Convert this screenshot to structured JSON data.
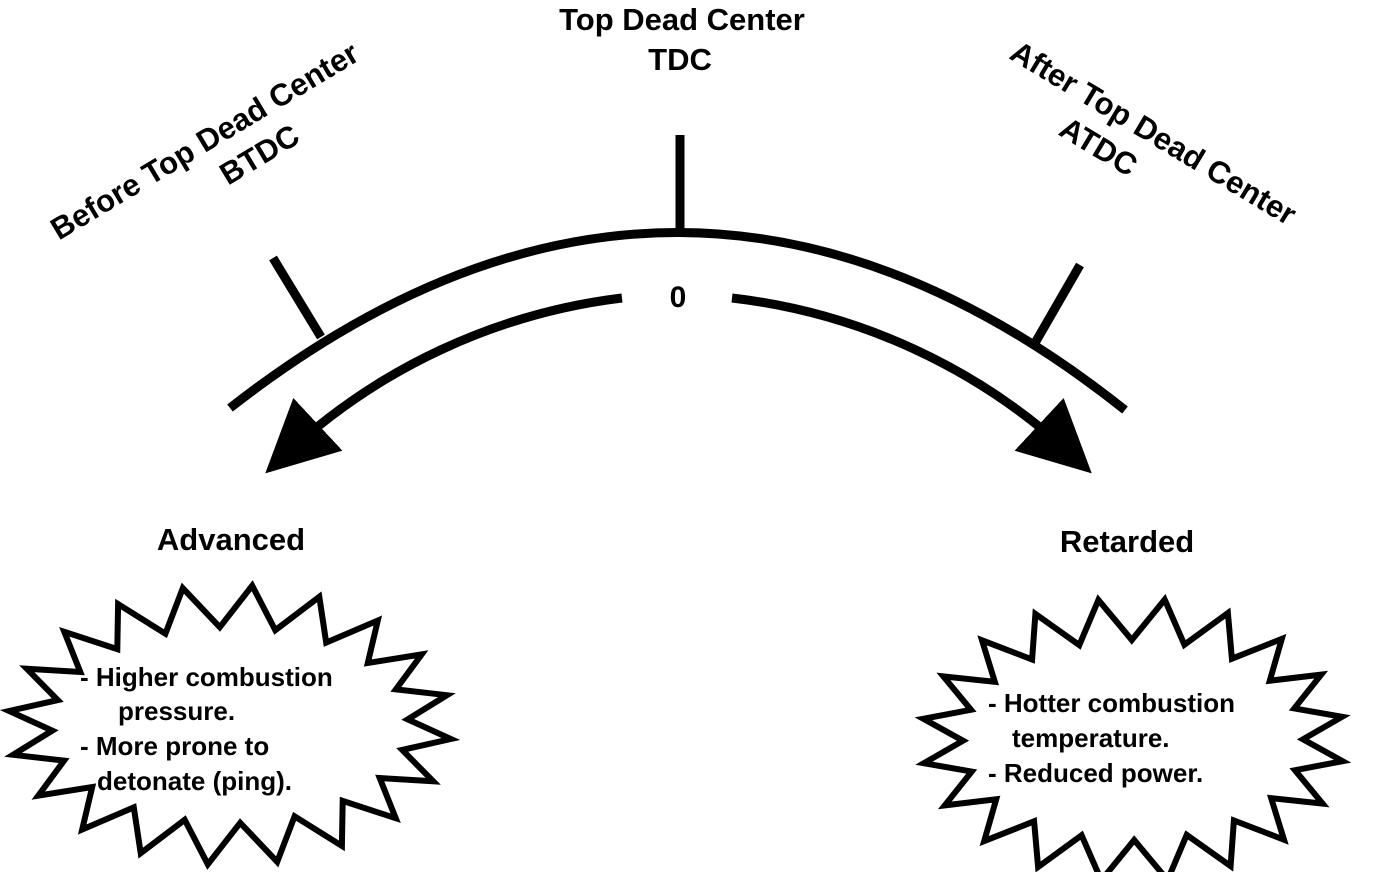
{
  "tdc": {
    "title": "Top Dead Center",
    "abbr": "TDC"
  },
  "btdc": {
    "title": "Before Top Dead Center",
    "abbr": "BTDC"
  },
  "atdc": {
    "title": "After Top Dead Center",
    "abbr": "ATDC"
  },
  "zero_label": "0",
  "advanced": {
    "label": "Advanced",
    "notes": [
      "- Higher combustion",
      "pressure.",
      "- More prone to",
      "detonate (ping)."
    ]
  },
  "retarded": {
    "label": "Retarded",
    "notes": [
      "- Hotter combustion",
      "temperature.",
      "- Reduced power."
    ]
  },
  "colors": {
    "ink": "#000000",
    "background": "#ffffff"
  }
}
